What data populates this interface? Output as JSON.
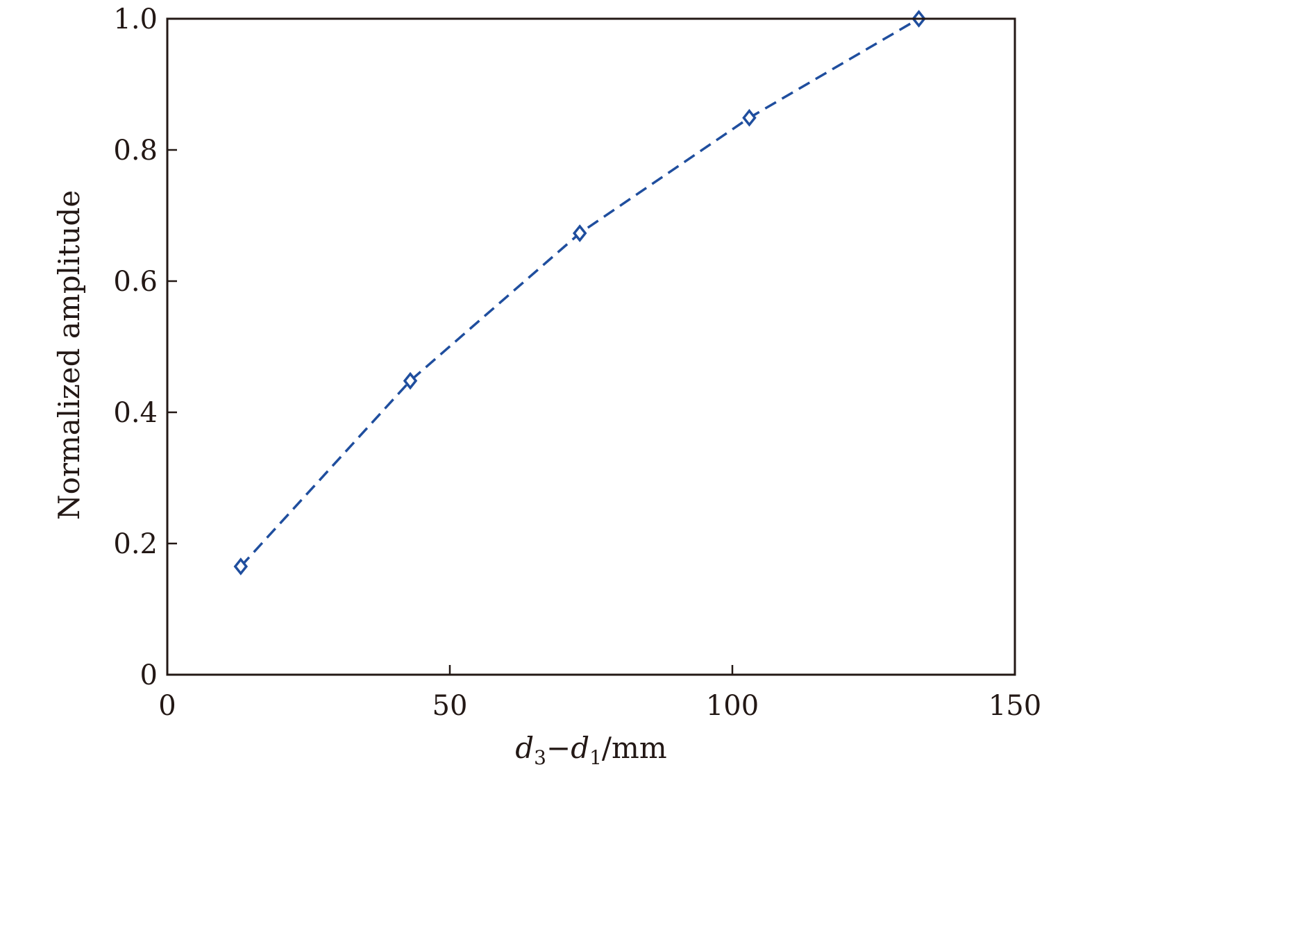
{
  "chart_data": {
    "type": "line",
    "title": "",
    "xlabel": {
      "var1": "d",
      "sub1": "3",
      "minus": "−",
      "var2": "d",
      "sub2": "1",
      "unit": "/mm"
    },
    "ylabel": "Normalized amplitude",
    "xlim": [
      0,
      150
    ],
    "ylim": [
      0,
      1.0
    ],
    "xticks": [
      0,
      50,
      100,
      150
    ],
    "xtick_labels": [
      "0",
      "50",
      "100",
      "150"
    ],
    "yticks": [
      0,
      0.2,
      0.4,
      0.6,
      0.8,
      1.0
    ],
    "ytick_labels": [
      "0",
      "0.2",
      "0.4",
      "0.6",
      "0.8",
      "1.0"
    ],
    "grid": false,
    "legend": false,
    "series": [
      {
        "marker": "diamond-open",
        "line_style": "dashed",
        "color": "#1f4e9e",
        "x": [
          13,
          43,
          73,
          103,
          133
        ],
        "y": [
          0.165,
          0.448,
          0.673,
          0.849,
          1.0
        ]
      }
    ]
  }
}
